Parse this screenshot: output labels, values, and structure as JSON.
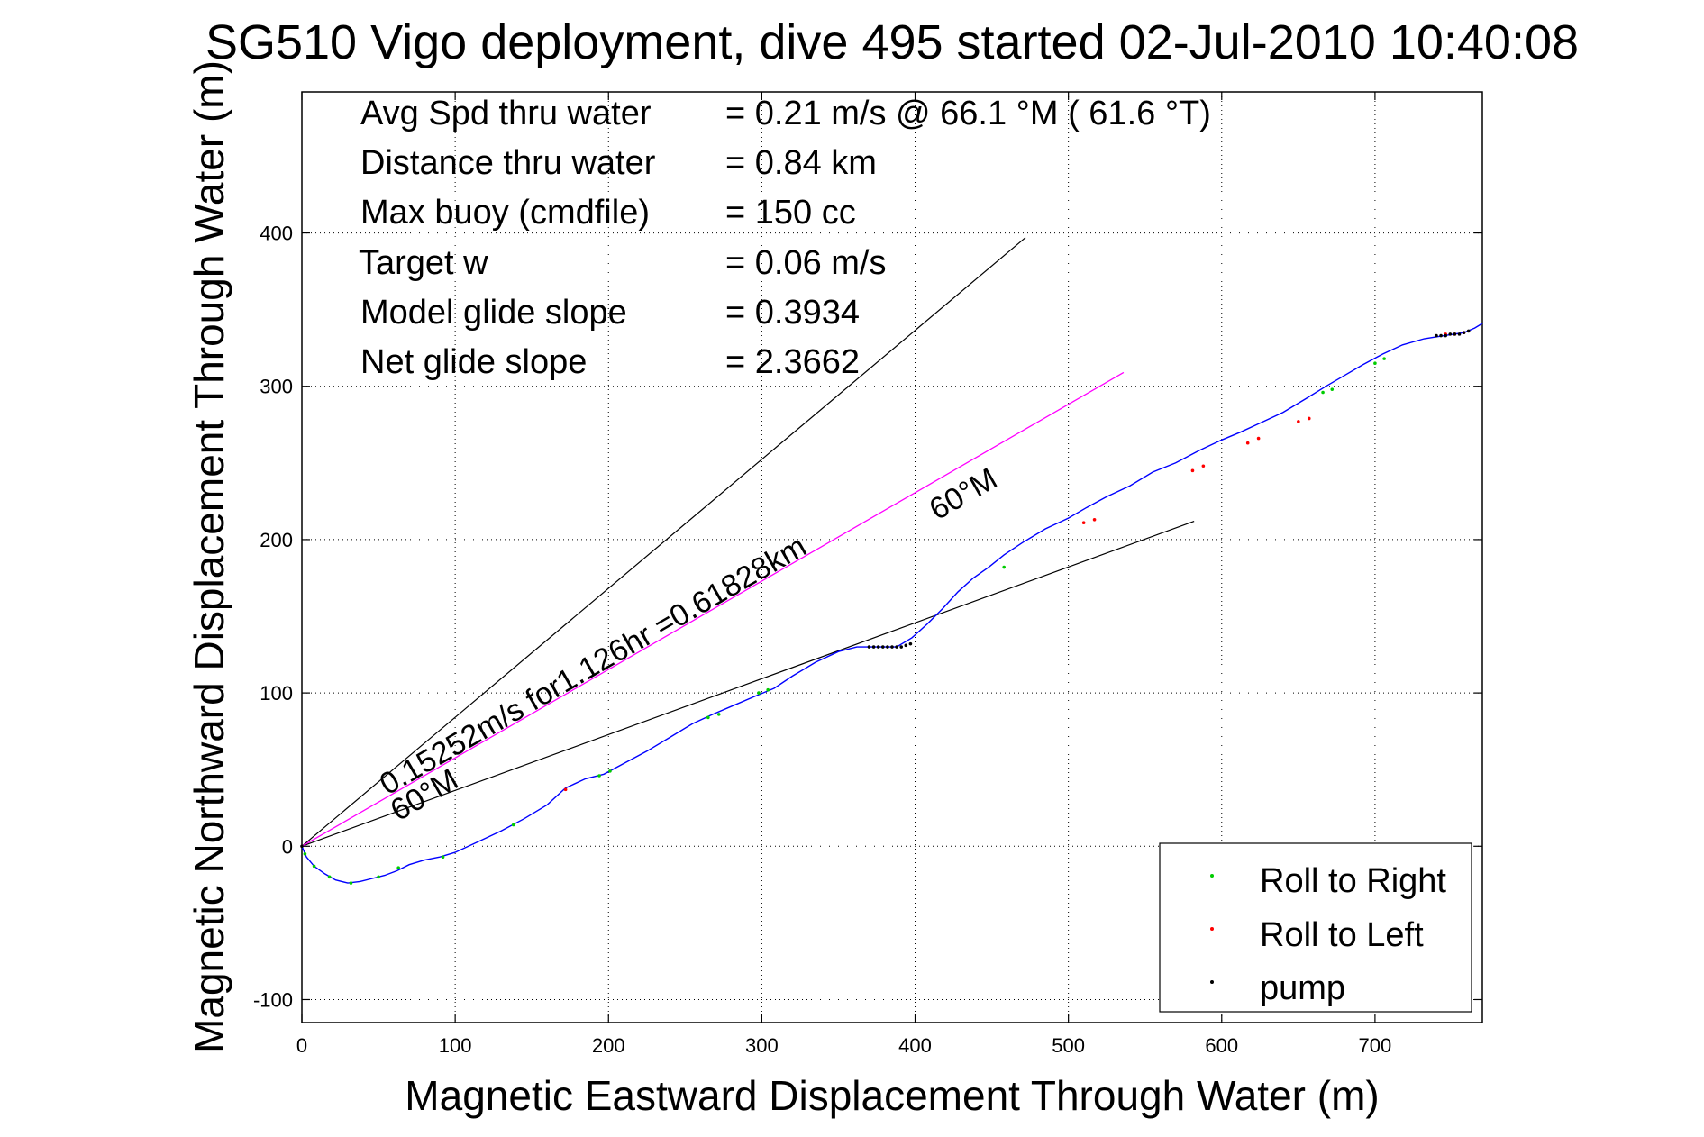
{
  "title": "SG510 Vigo deployment, dive 495 started 02-Jul-2010 10:40:08",
  "xlabel": "Magnetic Eastward Displacement Through Water (m)",
  "ylabel": "Magnetic Northward Displacement Through Water (m)",
  "stats": [
    {
      "label": "Avg Spd thru water",
      "value": "=  0.21 m/s @  66.1 °M ( 61.6 °T)"
    },
    {
      "label": "Distance thru water",
      "value": "=  0.84 km"
    },
    {
      "label": "Max buoy (cmdfile)",
      "value": "= 150 cc"
    },
    {
      "label": "Target w",
      "value": "= 0.06 m/s"
    },
    {
      "label": "Model glide slope",
      "value": "= 0.3934"
    },
    {
      "label": "Net glide slope",
      "value": "= 2.3662"
    }
  ],
  "annotations": {
    "current_label": "0.15252m/s for1.126hr =0.61828km",
    "heading_upper": "60°M",
    "heading_lower": "60°M"
  },
  "legend": {
    "items": [
      {
        "label": "Roll to Right",
        "color": "#00cc00"
      },
      {
        "label": "Roll to Left",
        "color": "#ff0000"
      },
      {
        "label": "pump",
        "color": "#000000"
      }
    ],
    "placement": "bottom-right"
  },
  "chart_data": {
    "type": "line",
    "xlim": [
      0,
      770
    ],
    "ylim": [
      -115,
      492
    ],
    "xticks": [
      0,
      100,
      200,
      300,
      400,
      500,
      600,
      700
    ],
    "yticks": [
      -100,
      0,
      100,
      200,
      300,
      400
    ],
    "grid": true,
    "colors": {
      "track": "#0000ff",
      "current": "#ff00ff",
      "heading": "#000000"
    },
    "track": {
      "x": [
        0,
        3,
        8,
        15,
        22,
        30,
        38,
        46,
        54,
        62,
        70,
        80,
        90,
        100,
        115,
        130,
        145,
        160,
        172,
        185,
        197,
        210,
        225,
        240,
        255,
        268,
        282,
        296,
        308,
        320,
        335,
        350,
        362,
        375,
        388,
        398,
        408,
        418,
        428,
        438,
        448,
        458,
        470,
        485,
        500,
        512,
        525,
        540,
        555,
        570,
        585,
        600,
        612,
        625,
        640,
        655,
        668,
        680,
        692,
        705,
        718,
        732,
        745,
        758,
        765,
        770
      ],
      "y": [
        0,
        -7,
        -13,
        -18,
        -22,
        -24,
        -23,
        -21,
        -19,
        -16,
        -12,
        -9,
        -7,
        -4,
        3,
        10,
        18,
        27,
        38,
        44,
        47,
        54,
        62,
        71,
        80,
        86,
        92,
        98,
        103,
        111,
        120,
        127,
        130,
        130,
        130,
        136,
        145,
        155,
        166,
        175,
        182,
        190,
        198,
        207,
        214,
        221,
        228,
        235,
        244,
        250,
        258,
        265,
        270,
        276,
        283,
        292,
        300,
        307,
        314,
        321,
        327,
        331,
        333,
        335,
        338,
        341
      ]
    },
    "roll_right": {
      "x": [
        2,
        8,
        18,
        32,
        50,
        63,
        92,
        138,
        194,
        201,
        265,
        272,
        298,
        304,
        458,
        666,
        672,
        700,
        706
      ],
      "y": [
        -5,
        -13,
        -20,
        -24,
        -20,
        -14,
        -7,
        14,
        46,
        49,
        84,
        86,
        100,
        102,
        182,
        296,
        298,
        315,
        318
      ]
    },
    "roll_left": {
      "x": [
        172,
        510,
        517,
        581,
        588,
        617,
        624,
        650,
        657,
        746,
        752,
        758
      ],
      "y": [
        37,
        211,
        213,
        245,
        248,
        263,
        266,
        277,
        279,
        334,
        334,
        335
      ]
    },
    "pump": {
      "x": [
        0,
        370,
        373,
        376,
        379,
        382,
        385,
        388,
        391,
        394,
        397,
        740,
        743,
        746,
        749,
        752,
        755,
        758,
        761
      ],
      "y": [
        0,
        130,
        130,
        130,
        130,
        130,
        130,
        130,
        130,
        131,
        132,
        333,
        333,
        333,
        334,
        334,
        334,
        335,
        336
      ]
    },
    "current_line": {
      "x": [
        0,
        536
      ],
      "y": [
        0,
        309
      ]
    },
    "heading_lines": [
      {
        "x": [
          0,
          472
        ],
        "y": [
          0,
          397
        ]
      },
      {
        "x": [
          0,
          582
        ],
        "y": [
          0,
          212
        ]
      }
    ]
  }
}
